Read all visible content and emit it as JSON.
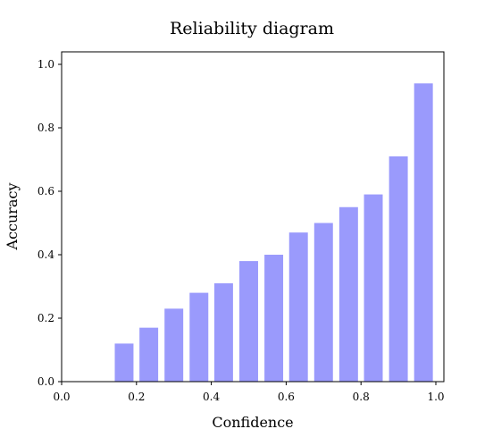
{
  "chart_data": {
    "type": "bar",
    "title": "Reliability diagram",
    "xlabel": "Confidence",
    "ylabel": "Accuracy",
    "xlim": [
      0.0,
      1.0
    ],
    "ylim": [
      0.0,
      1.0
    ],
    "xticks": [
      "0.0",
      "0.2",
      "0.4",
      "0.6",
      "0.8",
      "1.0"
    ],
    "yticks": [
      "0.0",
      "0.2",
      "0.4",
      "0.6",
      "0.8",
      "1.0"
    ],
    "grid": false,
    "bar_color": "#9a9afc",
    "bar_width": 0.05,
    "x": [
      0.167,
      0.233,
      0.3,
      0.367,
      0.433,
      0.5,
      0.567,
      0.633,
      0.7,
      0.767,
      0.833,
      0.9,
      0.967
    ],
    "values": [
      0.12,
      0.17,
      0.23,
      0.28,
      0.31,
      0.38,
      0.4,
      0.47,
      0.5,
      0.55,
      0.59,
      0.71,
      0.94
    ]
  }
}
